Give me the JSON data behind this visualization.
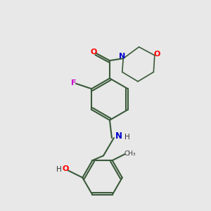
{
  "background_color": "#e8e8e8",
  "bond_color": "#3a5a3a",
  "atom_colors": {
    "O": "#ff0000",
    "N": "#0000cc",
    "F": "#cc00cc",
    "C": "#000000",
    "H": "#000000"
  },
  "figsize": [
    3.0,
    3.0
  ],
  "dpi": 100
}
